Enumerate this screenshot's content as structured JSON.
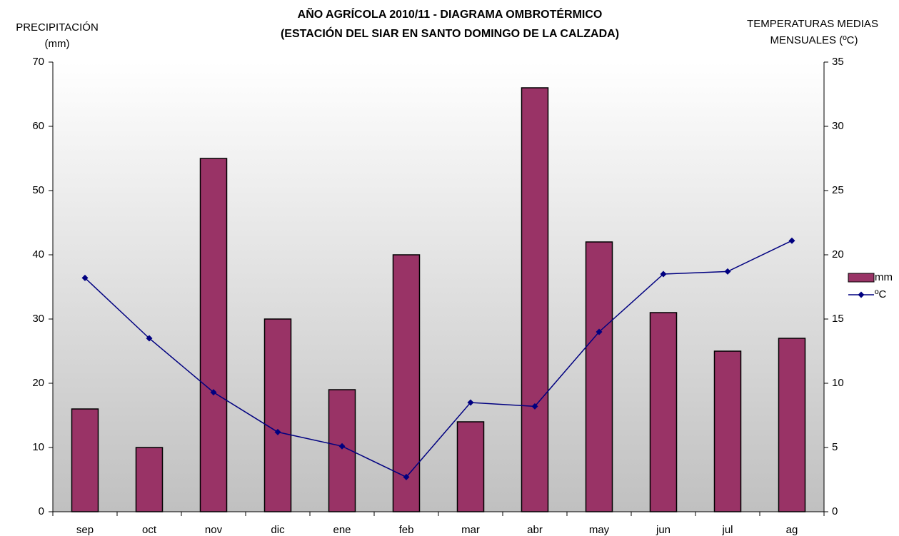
{
  "chart_data": {
    "type": "bar",
    "title": [
      "AÑO AGRÍCOLA 2010/11 - DIAGRAMA OMBROTÉRMICO",
      "(ESTACIÓN DEL SIAR EN  SANTO DOMINGO DE LA CALZADA)"
    ],
    "ylabel": [
      "PRECIPITACIÓN",
      "(mm)"
    ],
    "y2label": [
      "TEMPERATURAS MEDIAS",
      "MENSUALES  (ºC)"
    ],
    "categories": [
      "sep",
      "oct",
      "nov",
      "dic",
      "ene",
      "feb",
      "mar",
      "abr",
      "may",
      "jun",
      "jul",
      "ag"
    ],
    "series": [
      {
        "name": "mm",
        "type": "bar",
        "color": "#993366",
        "values": [
          16,
          10,
          55,
          30,
          19,
          40,
          14,
          66,
          42,
          31,
          25,
          27
        ]
      },
      {
        "name": "ºC",
        "type": "line",
        "axis": "y2",
        "color": "#000080",
        "values": [
          18.2,
          13.5,
          9.3,
          6.2,
          5.1,
          2.7,
          8.5,
          8.2,
          14,
          18.5,
          18.7,
          21.1
        ]
      }
    ],
    "ylim": [
      0,
      70
    ],
    "yticks": [
      0,
      10,
      20,
      30,
      40,
      50,
      60,
      70
    ],
    "y2lim": [
      0,
      35
    ],
    "y2ticks": [
      0,
      5,
      10,
      15,
      20,
      25,
      30,
      35
    ],
    "grid": false,
    "legend": "right"
  }
}
